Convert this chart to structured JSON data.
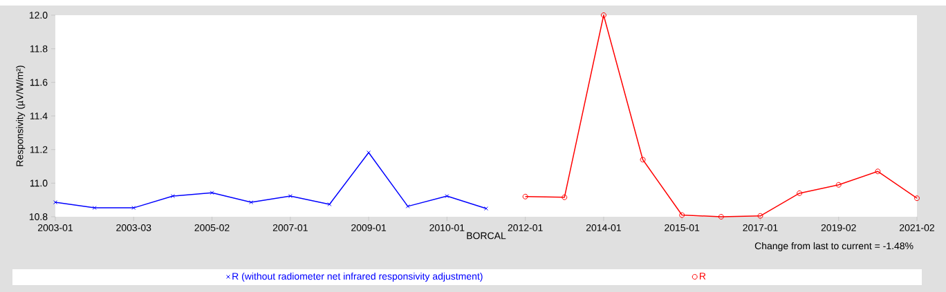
{
  "chart_data": {
    "type": "line",
    "categories": [
      "2003-01",
      null,
      "2003-03",
      null,
      "2005-02",
      null,
      "2007-01",
      null,
      "2009-01",
      null,
      "2010-01",
      null,
      "2012-01",
      null,
      "2014-01",
      null,
      "2015-01",
      null,
      "2017-01",
      null,
      "2019-02",
      null,
      "2021-02"
    ],
    "series": [
      {
        "name": "R (without radiometer net infrared responsivity adjustment)",
        "color": "#0000ff",
        "marker": "cross",
        "values": [
          10.886,
          10.853,
          10.853,
          10.923,
          10.943,
          10.886,
          10.923,
          10.874,
          11.182,
          10.862,
          10.923,
          10.849,
          null,
          null,
          null,
          null,
          null,
          null,
          null,
          null,
          null,
          null,
          null
        ]
      },
      {
        "name": "R",
        "color": "#ff0000",
        "marker": "circle",
        "values": [
          null,
          null,
          null,
          null,
          null,
          null,
          null,
          null,
          null,
          null,
          null,
          null,
          10.92,
          10.916,
          12.0,
          11.14,
          10.81,
          10.8,
          10.805,
          10.94,
          10.99,
          11.07,
          10.91
        ]
      }
    ],
    "ylabel": "Responsivity (µV/W/m²)",
    "xlabel": "BORCAL",
    "ylim": [
      10.8,
      12.0
    ],
    "yticks": [
      10.8,
      {
        "value": 11,
        "label": "11.0"
      },
      11.2,
      11.4,
      11.6,
      11.8,
      {
        "value": 12,
        "label": "12.0"
      }
    ],
    "annotations": [
      "Change from last to current = -1.48%"
    ],
    "legend": "bottom",
    "line_style": "solid"
  }
}
